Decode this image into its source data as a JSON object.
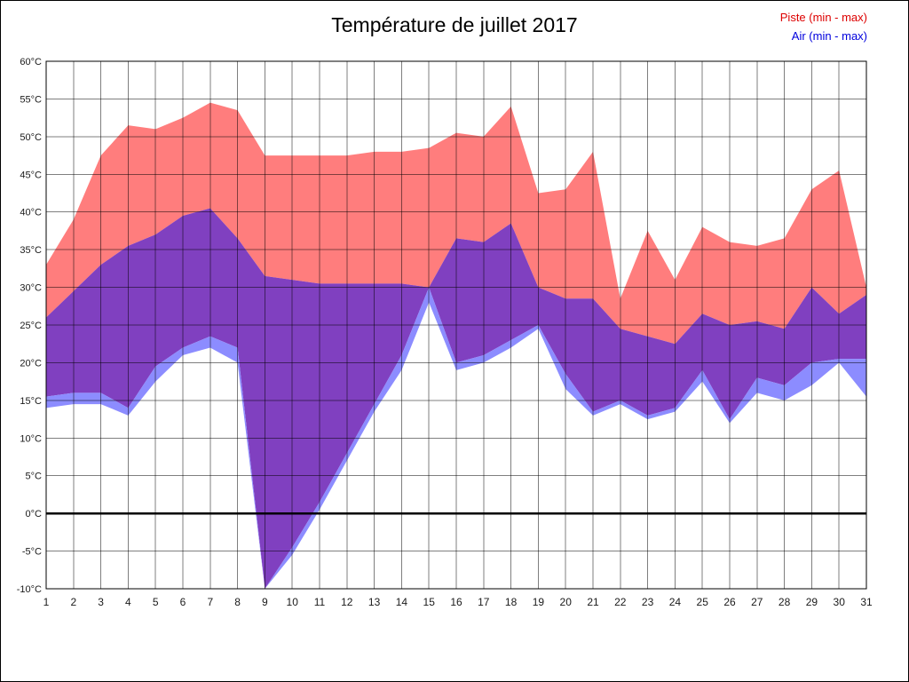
{
  "title": "Température de juillet 2017",
  "legend": [
    {
      "label": "Piste (min - max)",
      "color": "#dd0000"
    },
    {
      "label": "Air (min - max)",
      "color": "#0000dd"
    }
  ],
  "chart_data": {
    "type": "area",
    "title": "Température de juillet 2017",
    "xlabel": "",
    "ylabel": "°C",
    "x": [
      1,
      2,
      3,
      4,
      5,
      6,
      7,
      8,
      9,
      10,
      11,
      12,
      13,
      14,
      15,
      16,
      17,
      18,
      19,
      20,
      21,
      22,
      23,
      24,
      25,
      26,
      27,
      28,
      29,
      30,
      31
    ],
    "ylim": [
      -10,
      60
    ],
    "ytick_step": 5,
    "ytick_suffix": "°C",
    "grid": true,
    "legend_position": "top-right",
    "series": [
      {
        "name": "Piste max",
        "values": [
          33,
          39,
          47.5,
          51.5,
          51,
          52.5,
          54.5,
          53.5,
          47.5,
          47.5,
          47.5,
          47.5,
          48,
          48,
          48.5,
          50.5,
          50,
          54,
          42.5,
          43,
          48,
          28.5,
          37.5,
          31,
          38,
          36,
          35.5,
          36.5,
          43,
          45.5,
          30
        ]
      },
      {
        "name": "Air max",
        "values": [
          26,
          29.5,
          33,
          35.5,
          37,
          39.5,
          40.5,
          36.5,
          31.5,
          31,
          30.5,
          30.5,
          30.5,
          30.5,
          30,
          36.5,
          36,
          38.5,
          30,
          28.5,
          28.5,
          24.5,
          23.5,
          22.5,
          26.5,
          25,
          25.5,
          24.5,
          30,
          26.5,
          29
        ]
      },
      {
        "name": "Piste min",
        "values": [
          15.5,
          16,
          16,
          14,
          19.5,
          22,
          23.5,
          22,
          -10,
          -4.5,
          1.5,
          8,
          14.5,
          21,
          30,
          20,
          21,
          23,
          25,
          18.5,
          13.5,
          15,
          13,
          14,
          19,
          12.5,
          18,
          17,
          20,
          20.5,
          20.5
        ]
      },
      {
        "name": "Air min",
        "values": [
          14,
          14.5,
          14.5,
          13,
          17.5,
          21,
          22,
          20,
          -10,
          -5.5,
          0.5,
          7,
          13.5,
          19,
          28,
          19,
          20,
          22,
          24.5,
          16.5,
          13,
          14.5,
          12.5,
          13.5,
          17.5,
          12,
          16,
          15,
          17,
          20,
          15.5
        ]
      }
    ],
    "colors": {
      "piste_fill": "#ff7d7d",
      "air_fill": "#8c8cff",
      "overlap_fill": "#8040c0",
      "zero_line": "#000000",
      "grid_line": "rgba(0,0,0,0.5)",
      "tick_text": "#1a1a1a"
    }
  }
}
